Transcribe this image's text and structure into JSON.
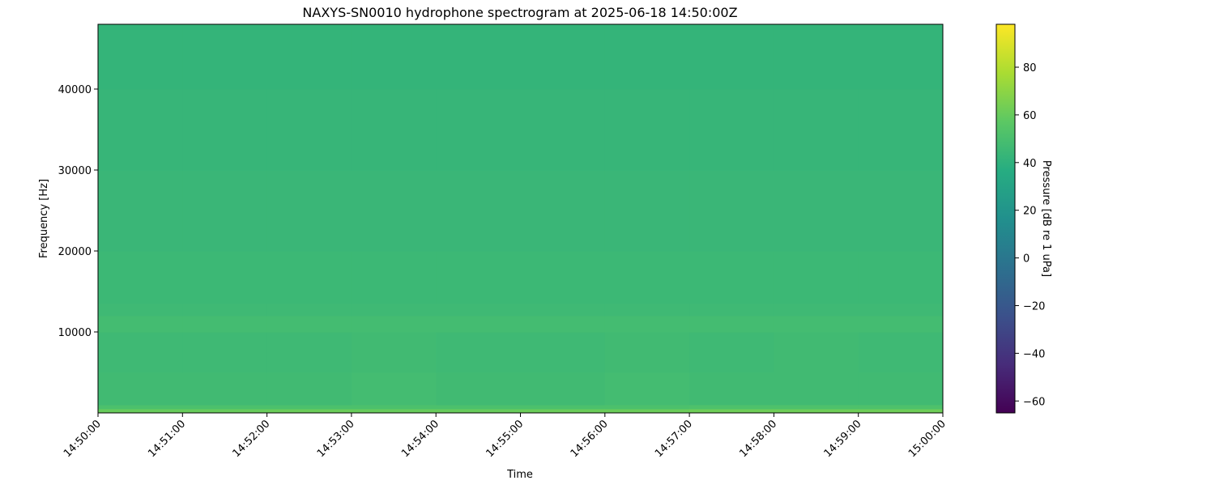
{
  "chart_data": {
    "type": "heatmap",
    "title": "NAXYS-SN0010 hydrophone spectrogram at 2025-06-18 14:50:00Z",
    "xlabel": "Time",
    "ylabel": "Frequency [Hz]",
    "colorbar_label": "Pressure [dB re 1 uPa]",
    "colormap": "viridis",
    "xlim": [
      "14:50:00",
      "15:00:00"
    ],
    "ylim": [
      0,
      48000
    ],
    "clim": [
      -65,
      98
    ],
    "x_ticks": [
      "14:50:00",
      "14:51:00",
      "14:52:00",
      "14:53:00",
      "14:54:00",
      "14:55:00",
      "14:56:00",
      "14:57:00",
      "14:58:00",
      "14:59:00",
      "15:00:00"
    ],
    "y_ticks": [
      10000,
      20000,
      30000,
      40000
    ],
    "y_tick_labels": [
      "10000",
      "20000",
      "30000",
      "40000"
    ],
    "colorbar_ticks": [
      -60,
      -40,
      -20,
      0,
      20,
      40,
      60,
      80
    ],
    "colorbar_tick_labels": [
      "−60",
      "−40",
      "−20",
      "0",
      "20",
      "40",
      "60",
      "80"
    ],
    "time_bins": [
      "14:50",
      "14:51",
      "14:52",
      "14:53",
      "14:54",
      "14:55",
      "14:56",
      "14:57",
      "14:58",
      "14:59"
    ],
    "freq_band_edges": [
      0,
      500,
      1000,
      5000,
      10000,
      12000,
      13500,
      20000,
      30000,
      40000,
      48000
    ],
    "values_db": [
      [
        60,
        51,
        47,
        46,
        48,
        46,
        45,
        44,
        43,
        42
      ],
      [
        60,
        51,
        47,
        46,
        48,
        46,
        45,
        44,
        43,
        42
      ],
      [
        61,
        51,
        47,
        46,
        48,
        46,
        45,
        44,
        43,
        42
      ],
      [
        60,
        51,
        48,
        47,
        48,
        46,
        45,
        44,
        43,
        42
      ],
      [
        60,
        51,
        47,
        46,
        48,
        46,
        45,
        44,
        43,
        42
      ],
      [
        61,
        51,
        47,
        46,
        48,
        46,
        45,
        44,
        43,
        42
      ],
      [
        61,
        51,
        48,
        47,
        48,
        46,
        45,
        44,
        43,
        42
      ],
      [
        62,
        52,
        47,
        46,
        48,
        46,
        45,
        44,
        43,
        42
      ],
      [
        62,
        52,
        47,
        47,
        48,
        46,
        45,
        44,
        43,
        42
      ],
      [
        62,
        52,
        47,
        46,
        48,
        46,
        45,
        44,
        43,
        42
      ]
    ],
    "grid": false,
    "legend": "none"
  }
}
